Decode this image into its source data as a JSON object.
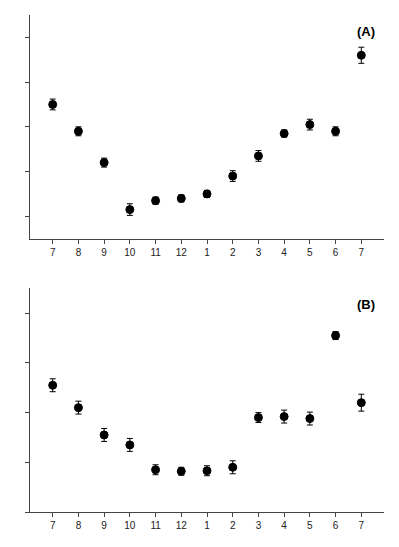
{
  "chart_data": [
    {
      "type": "scatter",
      "annotation": "(A)",
      "categories": [
        "7",
        "8",
        "9",
        "10",
        "11",
        "12",
        "1",
        "2",
        "3",
        "4",
        "5",
        "6",
        "7"
      ],
      "values": [
        5.5,
        4.9,
        4.2,
        3.15,
        3.35,
        3.4,
        3.5,
        3.9,
        4.35,
        4.85,
        5.05,
        4.9,
        6.6
      ],
      "errors": [
        0.12,
        0.1,
        0.1,
        0.13,
        0.08,
        0.08,
        0.08,
        0.12,
        0.12,
        0.08,
        0.12,
        0.1,
        0.18
      ],
      "color": "black",
      "marker": "circle",
      "line_style": "none",
      "ylim": [
        2.5,
        7.5
      ],
      "yticks": [
        3,
        4,
        5,
        6,
        7
      ],
      "tick_labels": "x",
      "grid": false
    },
    {
      "type": "scatter",
      "annotation": "(B)",
      "categories": [
        "7",
        "8",
        "9",
        "10",
        "11",
        "12",
        "1",
        "2",
        "3",
        "4",
        "5",
        "6",
        "7"
      ],
      "values": [
        3.55,
        3.1,
        2.55,
        2.35,
        1.85,
        1.82,
        1.83,
        1.9,
        2.9,
        2.92,
        2.88,
        4.55,
        3.2
      ],
      "errors": [
        0.13,
        0.13,
        0.13,
        0.13,
        0.1,
        0.08,
        0.1,
        0.13,
        0.1,
        0.13,
        0.13,
        0.08,
        0.17
      ],
      "color": "black",
      "marker": "circle",
      "line_style": "none",
      "ylim": [
        1.0,
        5.5
      ],
      "yticks": [
        1,
        2,
        3,
        4,
        5
      ],
      "tick_labels": "x",
      "grid": false
    }
  ]
}
